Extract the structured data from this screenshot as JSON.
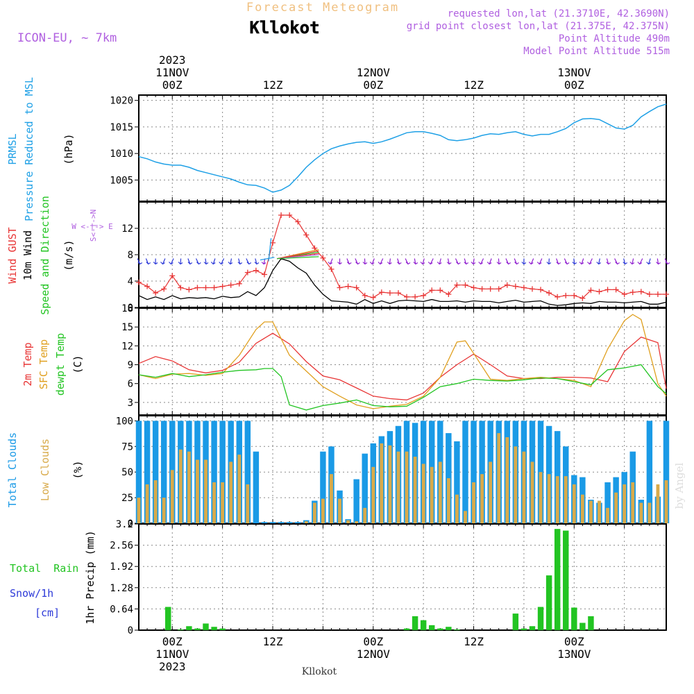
{
  "header": {
    "supertitle": "Forecast Meteogram",
    "location": "Kllokot",
    "model": "ICON-EU, ~ 7km",
    "requested": "requested lon,lat (21.3710E, 42.3690N)",
    "grid_point": "grid point closest lon,lat (21.375E, 42.375N)",
    "point_altitude": "Point Altitude 490m",
    "model_altitude": "Model Point Altitude 515m",
    "footer_location": "Kllokot",
    "credit": "by Angel"
  },
  "time_axis": {
    "year": "2023",
    "start_hour": 20,
    "end_hour": 83,
    "major_ticks": [
      {
        "hour": 24,
        "label": "00Z",
        "date": "11NOV",
        "year": "2023"
      },
      {
        "hour": 36,
        "label": "12Z",
        "date": "",
        "year": ""
      },
      {
        "hour": 48,
        "label": "00Z",
        "date": "12NOV",
        "year": ""
      },
      {
        "hour": 60,
        "label": "12Z",
        "date": "",
        "year": ""
      },
      {
        "hour": 72,
        "label": "00Z",
        "date": "13NOV",
        "year": ""
      },
      {
        "hour": 84,
        "label": "12Z",
        "date": "",
        "year": ""
      }
    ]
  },
  "colors": {
    "pressure": "#1ea0e6",
    "gust": "#e83535",
    "wind": "#000000",
    "temp2m": "#e83535",
    "sfc": "#e0a020",
    "dew": "#22c422",
    "total_clouds": "#1a9ae6",
    "low_clouds": "#d8aa4a",
    "precip": "#22c422",
    "snow_label": "#2d3ad8",
    "purple": "#b060e0",
    "axis": "#000000",
    "grid": "#888888"
  },
  "panel_labels": {
    "pressure": {
      "line1": "PRMSL",
      "line2": "Pressure Reduced to MSL",
      "unit": "(hPa)"
    },
    "wind": {
      "gust": "Wind GUST",
      "wind": "10m Wind",
      "dir": "Speed and Direction",
      "unit": "(m/s)",
      "compass_we": "W <-|-> E",
      "compass_ns": "S<-|->N"
    },
    "temp": {
      "t2m": "2m Temp",
      "sfc": "SFC Temp",
      "dew": "dewpt Temp",
      "unit": "(C)"
    },
    "clouds": {
      "total": "Total Clouds",
      "low": "Low Clouds",
      "unit": "(%)"
    },
    "precip": {
      "rain": "Total  Rain",
      "snow": "Snow/1h",
      "snow_unit": "[cm]",
      "unit": "1hr Precip (mm)"
    }
  },
  "chart_data": [
    {
      "type": "line",
      "title": "PRMSL Pressure Reduced to MSL",
      "ylabel": "(hPa)",
      "ylim": [
        1001,
        1021
      ],
      "yticks": [
        1005,
        1010,
        1015,
        1020
      ],
      "series": [
        {
          "name": "PRMSL",
          "x": [
            20,
            21,
            22,
            23,
            24,
            25,
            26,
            27,
            28,
            29,
            30,
            31,
            32,
            33,
            34,
            35,
            36,
            37,
            38,
            39,
            40,
            41,
            42,
            43,
            44,
            45,
            46,
            47,
            48,
            49,
            50,
            51,
            52,
            53,
            54,
            55,
            56,
            57,
            58,
            59,
            60,
            61,
            62,
            63,
            64,
            65,
            66,
            67,
            68,
            69,
            70,
            71,
            72,
            73,
            74,
            75,
            76,
            77,
            78,
            79,
            80,
            81,
            82,
            83
          ],
          "values": [
            1009.4,
            1009,
            1008.4,
            1008,
            1007.8,
            1007.8,
            1007.4,
            1006.8,
            1006.4,
            1006,
            1005.6,
            1005.2,
            1004.6,
            1004.1,
            1004,
            1003.5,
            1002.7,
            1003.1,
            1004,
            1005.6,
            1007.4,
            1008.8,
            1010,
            1010.9,
            1011.4,
            1011.8,
            1012.1,
            1012.2,
            1011.9,
            1012.2,
            1012.7,
            1013.3,
            1013.9,
            1014.1,
            1014.1,
            1013.8,
            1013.4,
            1012.6,
            1012.4,
            1012.6,
            1012.9,
            1013.4,
            1013.7,
            1013.6,
            1013.9,
            1014.1,
            1013.6,
            1013.3,
            1013.6,
            1013.6,
            1014.1,
            1014.7,
            1015.8,
            1016.5,
            1016.6,
            1016.4,
            1015.6,
            1014.8,
            1014.6,
            1015.3,
            1016.9,
            1017.9,
            1018.8,
            1019.3
          ]
        }
      ]
    },
    {
      "type": "line",
      "title": "Wind GUST / 10m Wind Speed and Direction",
      "ylabel": "(m/s)",
      "ylim": [
        0,
        16
      ],
      "yticks": [
        0,
        4,
        8,
        12
      ],
      "series": [
        {
          "name": "Wind GUST",
          "x": [
            20,
            21,
            22,
            23,
            24,
            25,
            26,
            27,
            28,
            29,
            30,
            31,
            32,
            33,
            34,
            35,
            36,
            37,
            38,
            39,
            40,
            41,
            42,
            43,
            44,
            45,
            46,
            47,
            48,
            49,
            50,
            51,
            52,
            53,
            54,
            55,
            56,
            57,
            58,
            59,
            60,
            61,
            62,
            63,
            64,
            65,
            66,
            67,
            68,
            69,
            70,
            71,
            72,
            73,
            74,
            75,
            76,
            77,
            78,
            79,
            80,
            81,
            82,
            83
          ],
          "values": [
            3.8,
            3.2,
            2.2,
            2.8,
            4.8,
            3,
            2.7,
            3,
            3,
            3,
            3.2,
            3.4,
            3.6,
            5.3,
            5.6,
            5,
            9.8,
            14,
            14,
            13,
            11,
            9,
            7.5,
            5.8,
            3,
            3.2,
            3,
            1.8,
            1.5,
            2.3,
            2.2,
            2.2,
            1.6,
            1.6,
            1.8,
            2.6,
            2.6,
            2,
            3.4,
            3.4,
            3,
            2.8,
            2.8,
            2.8,
            3.4,
            3.2,
            3,
            2.8,
            2.7,
            2.2,
            1.6,
            1.8,
            1.8,
            1.4,
            2.6,
            2.4,
            2.7,
            2.7,
            2,
            2.3,
            2.4,
            2,
            2,
            2
          ]
        },
        {
          "name": "10m Wind",
          "x": [
            20,
            21,
            22,
            23,
            24,
            25,
            26,
            27,
            28,
            29,
            30,
            31,
            32,
            33,
            34,
            35,
            36,
            37,
            38,
            39,
            40,
            41,
            42,
            43,
            44,
            45,
            46,
            47,
            48,
            49,
            50,
            51,
            52,
            53,
            54,
            55,
            56,
            57,
            58,
            59,
            60,
            61,
            62,
            63,
            64,
            65,
            66,
            67,
            68,
            69,
            70,
            71,
            72,
            73,
            74,
            75,
            76,
            77,
            78,
            79,
            80,
            81,
            82,
            83
          ],
          "values": [
            1.8,
            1.2,
            1.6,
            1.2,
            1.8,
            1.3,
            1.5,
            1.4,
            1.5,
            1.3,
            1.7,
            1.5,
            1.6,
            2.4,
            1.8,
            3,
            5.6,
            7.4,
            7,
            6,
            5.2,
            3.4,
            2,
            1,
            0.9,
            0.8,
            0.5,
            1.2,
            0.6,
            1,
            0.6,
            1,
            1.1,
            1,
            0.9,
            1.2,
            0.9,
            0.9,
            1,
            0.8,
            1,
            0.9,
            0.9,
            0.7,
            0.9,
            1.1,
            0.8,
            0.9,
            1,
            0.5,
            0.3,
            0.4,
            0.6,
            0.7,
            0.6,
            0.9,
            0.8,
            0.8,
            0.7,
            0.8,
            0.9,
            0.5,
            0.5,
            0.8
          ]
        }
      ]
    },
    {
      "type": "line",
      "title": "2m Temp / SFC Temp / dewpt Temp",
      "ylabel": "(C)",
      "ylim": [
        1,
        18
      ],
      "yticks": [
        3,
        6,
        9,
        12,
        15,
        18
      ],
      "series": [
        {
          "name": "2m Temp",
          "x": [
            20,
            22,
            24,
            26,
            28,
            30,
            32,
            34,
            36,
            38,
            40,
            42,
            44,
            46,
            48,
            50,
            52,
            54,
            56,
            58,
            60,
            62,
            64,
            66,
            68,
            70,
            72,
            74,
            76,
            78,
            80,
            82,
            83
          ],
          "values": [
            9.2,
            10.3,
            9.6,
            8.2,
            7.7,
            8.1,
            9.4,
            12.4,
            14,
            12.3,
            9.5,
            7.2,
            6.6,
            5.3,
            4,
            3.6,
            3.4,
            4.5,
            7,
            9,
            10.7,
            9,
            7.2,
            6.8,
            6.8,
            7,
            7,
            6.9,
            6.3,
            11.1,
            13.4,
            12.5,
            5.2
          ]
        },
        {
          "name": "SFC Temp",
          "x": [
            20,
            22,
            24,
            26,
            28,
            30,
            32,
            34,
            35,
            36,
            38,
            40,
            42,
            44,
            46,
            48,
            50,
            52,
            54,
            56,
            58,
            59,
            60,
            62,
            64,
            66,
            68,
            70,
            72,
            74,
            76,
            78,
            79,
            80,
            82,
            83
          ],
          "values": [
            7.4,
            6.8,
            7.5,
            7.6,
            7.3,
            7.6,
            10.5,
            14.6,
            15.8,
            15.8,
            10.5,
            8,
            5.5,
            4,
            2.6,
            2,
            2.4,
            2.7,
            4,
            7,
            12.6,
            12.8,
            10.8,
            6.7,
            6.5,
            6.8,
            7,
            6.8,
            6.5,
            5.5,
            11.5,
            16,
            17,
            16.2,
            6,
            4
          ]
        },
        {
          "name": "dewpt Temp",
          "x": [
            20,
            22,
            24,
            26,
            28,
            30,
            32,
            34,
            35,
            36,
            37,
            38,
            40,
            42,
            44,
            46,
            48,
            50,
            52,
            54,
            56,
            58,
            60,
            62,
            64,
            66,
            68,
            70,
            72,
            74,
            76,
            78,
            80,
            82,
            83
          ],
          "values": [
            7.4,
            7,
            7.6,
            7.1,
            7.4,
            7.8,
            8.1,
            8.2,
            8.4,
            8.4,
            7.1,
            2.6,
            1.8,
            2.5,
            2.9,
            3.4,
            2.5,
            2.3,
            2.4,
            3.8,
            5.5,
            6,
            6.7,
            6.5,
            6.4,
            6.6,
            6.9,
            6.8,
            6.3,
            5.8,
            8.2,
            8.5,
            9,
            5.5,
            4.4
          ]
        }
      ]
    },
    {
      "type": "bar",
      "title": "Total Clouds / Low Clouds",
      "ylabel": "(%)",
      "ylim": [
        0,
        105
      ],
      "yticks": [
        0,
        25,
        50,
        75,
        100
      ],
      "series": [
        {
          "name": "Total Clouds",
          "x": [
            20,
            21,
            22,
            23,
            24,
            25,
            26,
            27,
            28,
            29,
            30,
            31,
            32,
            33,
            34,
            35,
            36,
            37,
            38,
            39,
            40,
            41,
            42,
            43,
            44,
            45,
            46,
            47,
            48,
            49,
            50,
            51,
            52,
            53,
            54,
            55,
            56,
            57,
            58,
            59,
            60,
            61,
            62,
            63,
            64,
            65,
            66,
            67,
            68,
            69,
            70,
            71,
            72,
            73,
            74,
            75,
            76,
            77,
            78,
            79,
            80,
            81,
            82,
            83
          ],
          "values": [
            100,
            100,
            100,
            100,
            100,
            100,
            100,
            100,
            100,
            100,
            100,
            100,
            100,
            100,
            70,
            0,
            0,
            0,
            0,
            0,
            3,
            22,
            70,
            75,
            32,
            4,
            43,
            68,
            78,
            85,
            90,
            95,
            100,
            98,
            100,
            100,
            100,
            88,
            80,
            100,
            100,
            100,
            100,
            100,
            100,
            100,
            100,
            100,
            100,
            95,
            90,
            75,
            47,
            45,
            23,
            20,
            40,
            45,
            50,
            70,
            23,
            100,
            26,
            100
          ]
        },
        {
          "name": "Low Clouds",
          "x": [
            20,
            21,
            22,
            23,
            24,
            25,
            26,
            27,
            28,
            29,
            30,
            31,
            32,
            33,
            34,
            35,
            36,
            37,
            38,
            39,
            40,
            41,
            42,
            43,
            44,
            45,
            46,
            47,
            48,
            49,
            50,
            51,
            52,
            53,
            54,
            55,
            56,
            57,
            58,
            59,
            60,
            61,
            62,
            63,
            64,
            65,
            66,
            67,
            68,
            69,
            70,
            71,
            72,
            73,
            74,
            75,
            76,
            77,
            78,
            79,
            80,
            81,
            82,
            83
          ],
          "values": [
            25,
            38,
            42,
            25,
            52,
            72,
            70,
            62,
            62,
            40,
            40,
            60,
            67,
            38,
            0,
            0,
            0,
            0,
            0,
            0,
            2,
            20,
            24,
            48,
            24,
            3,
            2,
            15,
            55,
            78,
            76,
            70,
            70,
            65,
            58,
            55,
            60,
            44,
            28,
            12,
            40,
            48,
            60,
            88,
            84,
            75,
            70,
            60,
            50,
            48,
            46,
            46,
            38,
            28,
            22,
            22,
            15,
            30,
            38,
            40,
            20,
            20,
            38,
            42
          ]
        }
      ]
    },
    {
      "type": "bar",
      "title": "1hr Precip (mm)",
      "ylabel": "1hr Precip (mm)",
      "ylim": [
        0,
        3.2
      ],
      "yticks": [
        0,
        0.64,
        1.28,
        1.92,
        2.56,
        3.2
      ],
      "series": [
        {
          "name": "Total Rain",
          "x": [
            23.5,
            25,
            26,
            27,
            28,
            29,
            30,
            52,
            53,
            54,
            55,
            56,
            57,
            58,
            65,
            66,
            67,
            68,
            69,
            70,
            71,
            72,
            73,
            74
          ],
          "values": [
            0.7,
            0.02,
            0.12,
            0.05,
            0.2,
            0.1,
            0.05,
            0.05,
            0.42,
            0.3,
            0.15,
            0.05,
            0.1,
            0.02,
            0.5,
            0.05,
            0.12,
            0.7,
            1.65,
            3.05,
            3,
            0.68,
            0.22,
            0.42
          ]
        }
      ]
    }
  ]
}
